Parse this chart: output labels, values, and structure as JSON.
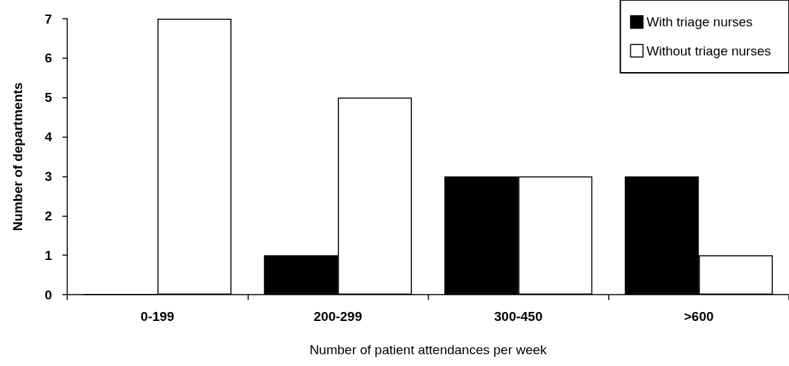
{
  "chart_data": {
    "type": "bar",
    "xlabel": "Number of patient attendances per week",
    "ylabel": "Number of departments",
    "categories": [
      "0-199",
      "200-299",
      "300-450",
      ">600"
    ],
    "series": [
      {
        "name": "With triage nurses",
        "color": "#000000",
        "values": [
          0,
          1,
          3,
          3
        ]
      },
      {
        "name": "Without triage nurses",
        "color": "#ffffff",
        "values": [
          7,
          5,
          3,
          1
        ]
      }
    ],
    "ylim": [
      0,
      7
    ],
    "yticks": [
      0,
      1,
      2,
      3,
      4,
      5,
      6,
      7
    ],
    "grid": false,
    "legend": "top right"
  }
}
